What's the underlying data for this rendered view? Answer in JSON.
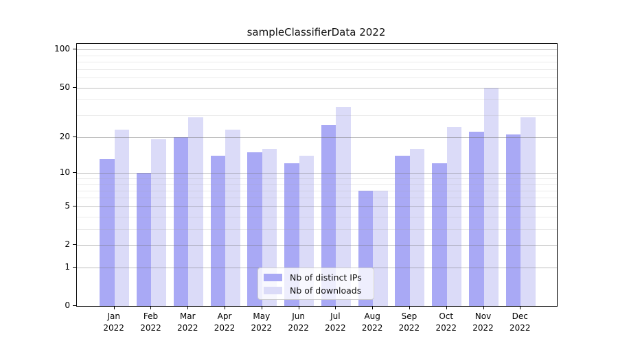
{
  "title": "sampleClassifierData 2022",
  "legend": {
    "items": [
      {
        "label": "Nb of distinct IPs",
        "color": "#a9a9f5"
      },
      {
        "label": "Nb of downloads",
        "color": "#dbdbf8"
      }
    ]
  },
  "chart_data": {
    "type": "bar",
    "title": "sampleClassifierData 2022",
    "xlabel": "",
    "ylabel": "",
    "y_scale": "log1p",
    "categories": [
      "Jan",
      "Feb",
      "Mar",
      "Apr",
      "May",
      "Jun",
      "Jul",
      "Aug",
      "Sep",
      "Oct",
      "Nov",
      "Dec"
    ],
    "category_year": "2022",
    "series": [
      {
        "name": "Nb of distinct IPs",
        "color": "#a9a9f5",
        "values": [
          13,
          10,
          20,
          14,
          15,
          12,
          25,
          7,
          14,
          12,
          22,
          21
        ]
      },
      {
        "name": "Nb of downloads",
        "color": "#dbdbf8",
        "values": [
          23,
          19,
          29,
          23,
          16,
          14,
          35,
          7,
          16,
          24,
          50,
          29
        ]
      }
    ],
    "yticks_major": [
      0,
      1,
      2,
      5,
      10,
      20,
      50,
      100
    ],
    "yticks_minor": [
      3,
      4,
      6,
      7,
      8,
      9,
      30,
      40,
      60,
      70,
      80,
      90
    ],
    "ylim": [
      0,
      111
    ],
    "grid": true,
    "legend_position": "lower center"
  }
}
